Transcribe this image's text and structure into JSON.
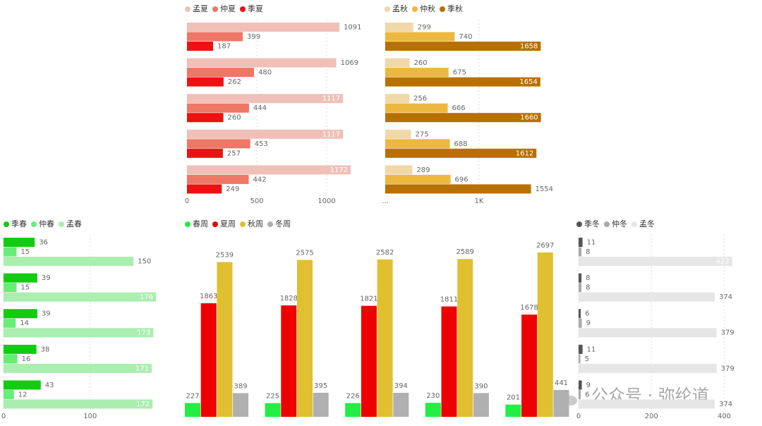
{
  "chart_data": [
    {
      "type": "hbar",
      "categories": [
        null,
        null,
        null,
        null,
        null
      ],
      "series": [
        {
          "name": "孟夏",
          "color": "#f0c0b8",
          "values": [
            1091,
            1069,
            1117,
            1117,
            1172
          ]
        },
        {
          "name": "仲夏",
          "color": "#ee7766",
          "values": [
            399,
            480,
            444,
            453,
            442
          ]
        },
        {
          "name": "季夏",
          "color": "#ee1111",
          "values": [
            187,
            262,
            260,
            257,
            249
          ]
        }
      ],
      "xlim": [
        0,
        1200
      ],
      "xticks": [
        0,
        500,
        1000
      ],
      "grid": true,
      "legend": "top-left"
    },
    {
      "type": "hbar",
      "categories": [
        null,
        null,
        null,
        null,
        null
      ],
      "series": [
        {
          "name": "孟秋",
          "color": "#f0d8a8",
          "values": [
            299,
            260,
            256,
            275,
            289
          ]
        },
        {
          "name": "仲秋",
          "color": "#ecb840",
          "values": [
            740,
            675,
            666,
            688,
            696
          ]
        },
        {
          "name": "季秋",
          "color": "#b87000",
          "values": [
            1658,
            1654,
            1660,
            1612,
            1554
          ]
        }
      ],
      "xlim": [
        0,
        1700
      ],
      "xticks": [
        {
          "value": 0,
          "label": "..."
        },
        {
          "value": 1000,
          "label": "1K"
        }
      ],
      "grid": true,
      "legend": "top-left"
    },
    {
      "type": "hbar",
      "categories": [
        null,
        null,
        null,
        null,
        null
      ],
      "series": [
        {
          "name": "季春",
          "color": "#11cc11",
          "values": [
            36,
            39,
            39,
            38,
            43
          ]
        },
        {
          "name": "仲春",
          "color": "#66ee77",
          "values": [
            15,
            15,
            14,
            16,
            12
          ]
        },
        {
          "name": "孟春",
          "color": "#aaeeb0",
          "values": [
            150,
            176,
            173,
            171,
            172
          ]
        }
      ],
      "xlim": [
        0,
        180
      ],
      "xticks": [
        0,
        100
      ],
      "grid": true,
      "legend": "top-left"
    },
    {
      "type": "bar",
      "categories": [
        null,
        null,
        null,
        null,
        null
      ],
      "series": [
        {
          "name": "春周",
          "color": "#22ee44",
          "values": [
            227,
            225,
            226,
            230,
            201
          ]
        },
        {
          "name": "夏周",
          "color": "#ee0000",
          "values": [
            1863,
            1828,
            1821,
            1811,
            1678
          ]
        },
        {
          "name": "秋周",
          "color": "#e0c030",
          "values": [
            2539,
            2575,
            2582,
            2589,
            2697
          ]
        },
        {
          "name": "冬周",
          "color": "#b0b0b0",
          "values": [
            389,
            395,
            394,
            390,
            441
          ]
        }
      ],
      "ylim": [
        0,
        2800
      ],
      "legend": "top-left"
    },
    {
      "type": "hbar",
      "categories": [
        null,
        null,
        null,
        null,
        null
      ],
      "series": [
        {
          "name": "季冬",
          "color": "#555555",
          "values": [
            11,
            8,
            6,
            11,
            9
          ]
        },
        {
          "name": "仲冬",
          "color": "#aaaaaa",
          "values": [
            8,
            8,
            9,
            5,
            6
          ]
        },
        {
          "name": "孟冬",
          "color": "#e6e6e6",
          "values": [
            422,
            374,
            379,
            379,
            374
          ]
        }
      ],
      "xlim": [
        0,
        430
      ],
      "xticks": [
        0,
        200,
        400
      ],
      "grid": true,
      "legend": "top-left"
    }
  ],
  "watermark": "公众号 · 弥纶道"
}
